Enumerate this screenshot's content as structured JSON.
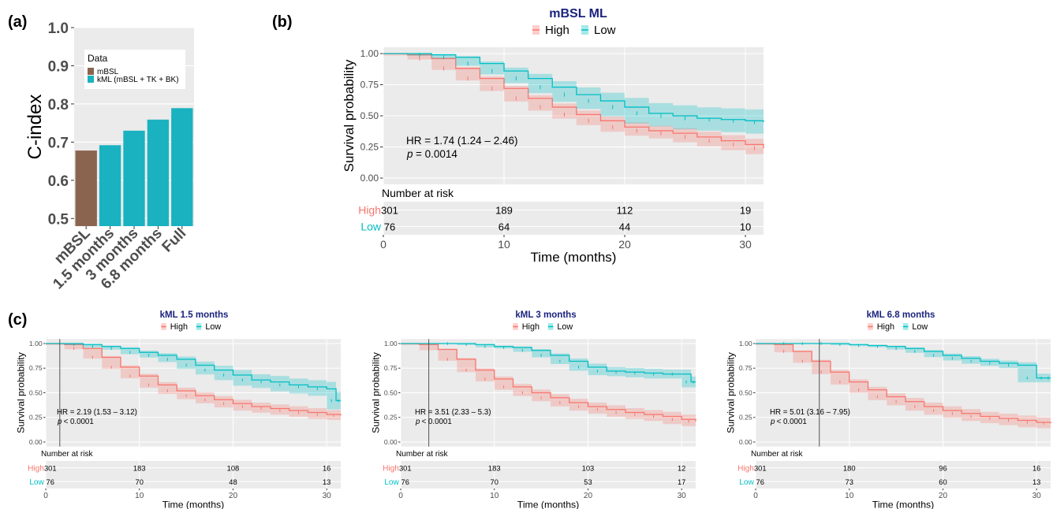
{
  "colors": {
    "high": "#F8766D",
    "low": "#00BFC4",
    "mbsl": "#8B6450",
    "kml": "#1AB2C0",
    "title": "#1A237E",
    "panel": "#EBEBEB"
  },
  "panels": {
    "a": "(a)",
    "b": "(b)",
    "c": "(c)"
  },
  "legend_common": {
    "high": "High",
    "low": "Low"
  },
  "risk_common": {
    "title": "Number at risk",
    "xlabel": "Time (months)",
    "ylabel": "Survival probability"
  },
  "chart_data": [
    {
      "id": "a",
      "type": "bar",
      "categories": [
        "mBSL",
        "1.5 months",
        "3 months",
        "6.8 months",
        "Full"
      ],
      "values": [
        0.678,
        0.692,
        0.73,
        0.759,
        0.789
      ],
      "series_group": [
        "mBSL",
        "kML",
        "kML",
        "kML",
        "kML"
      ],
      "ylabel": "C-index",
      "ylim": [
        0.48,
        1.0
      ],
      "yticks": [
        0.5,
        0.6,
        0.7,
        0.8,
        0.9,
        1.0
      ],
      "legend": {
        "title": "Data",
        "items": [
          "mBSL",
          "kML (mBSL + TK + BK)"
        ],
        "position": "top-left inside"
      }
    },
    {
      "id": "b",
      "type": "line",
      "title": "mBSL ML",
      "hr": "HR = 1.74 (1.24 – 2.46)",
      "p_label": "p",
      "p_value": "= 0.0014",
      "xlim": [
        0,
        31.5
      ],
      "ylim": [
        0,
        1
      ],
      "xticks": [
        0,
        10,
        20,
        30
      ],
      "yticks": [
        "0.00",
        "0.25",
        "0.50",
        "0.75",
        "1.00"
      ],
      "cutoff": null,
      "series": [
        {
          "name": "High",
          "x": [
            0,
            2,
            4,
            6,
            8,
            10,
            12,
            14,
            16,
            18,
            20,
            22,
            24,
            26,
            28,
            30,
            31.5
          ],
          "y": [
            1,
            0.99,
            0.96,
            0.88,
            0.8,
            0.72,
            0.64,
            0.57,
            0.51,
            0.46,
            0.41,
            0.38,
            0.36,
            0.33,
            0.3,
            0.27,
            0.24
          ],
          "band": 0.035
        },
        {
          "name": "Low",
          "x": [
            0,
            2,
            4,
            6,
            8,
            10,
            12,
            14,
            16,
            18,
            20,
            22,
            24,
            26,
            28,
            30,
            31.5
          ],
          "y": [
            1,
            1,
            0.99,
            0.97,
            0.92,
            0.86,
            0.8,
            0.73,
            0.67,
            0.62,
            0.57,
            0.52,
            0.5,
            0.48,
            0.47,
            0.46,
            0.45
          ],
          "band": 0.1
        }
      ],
      "risk": {
        "High": [
          "301",
          "189",
          "112",
          "19"
        ],
        "Low": [
          "76",
          "64",
          "44",
          "10"
        ]
      }
    },
    {
      "id": "c1",
      "type": "line",
      "title": "kML 1.5 months",
      "hr": "HR = 2.19 (1.53 – 3.12)",
      "p_label": "p",
      "p_value": "< 0.0001",
      "xlim": [
        0,
        31.5
      ],
      "ylim": [
        0,
        1
      ],
      "xticks": [
        0,
        10,
        20,
        30
      ],
      "yticks": [
        "0.00",
        "0.25",
        "0.50",
        "0.75",
        "1.00"
      ],
      "cutoff": 1.5,
      "series": [
        {
          "name": "High",
          "x": [
            0,
            2,
            4,
            6,
            8,
            10,
            12,
            14,
            16,
            18,
            20,
            22,
            24,
            26,
            28,
            30,
            31.5
          ],
          "y": [
            1,
            0.99,
            0.95,
            0.86,
            0.76,
            0.67,
            0.58,
            0.52,
            0.47,
            0.43,
            0.39,
            0.36,
            0.34,
            0.32,
            0.3,
            0.28,
            0.27
          ],
          "band": 0.035
        },
        {
          "name": "Low",
          "x": [
            0,
            2,
            4,
            6,
            8,
            10,
            12,
            14,
            16,
            18,
            20,
            22,
            24,
            26,
            28,
            30,
            31,
            31.5
          ],
          "y": [
            1,
            1,
            0.99,
            0.97,
            0.95,
            0.91,
            0.88,
            0.84,
            0.78,
            0.73,
            0.68,
            0.63,
            0.61,
            0.58,
            0.56,
            0.54,
            0.42,
            0.42
          ],
          "band": 0.09
        }
      ],
      "risk": {
        "High": [
          "301",
          "183",
          "108",
          "16"
        ],
        "Low": [
          "76",
          "70",
          "48",
          "13"
        ]
      }
    },
    {
      "id": "c2",
      "type": "line",
      "title": "kML 3 months",
      "hr": "HR = 3.51 (2.33 – 5.3)",
      "p_label": "p",
      "p_value": "< 0.0001",
      "xlim": [
        0,
        31.5
      ],
      "ylim": [
        0,
        1
      ],
      "xticks": [
        0,
        10,
        20,
        30
      ],
      "yticks": [
        "0.00",
        "0.25",
        "0.50",
        "0.75",
        "1.00"
      ],
      "cutoff": 3,
      "series": [
        {
          "name": "High",
          "x": [
            0,
            2,
            4,
            6,
            8,
            10,
            12,
            14,
            16,
            18,
            20,
            22,
            24,
            26,
            28,
            30,
            31.5
          ],
          "y": [
            1,
            0.99,
            0.94,
            0.84,
            0.73,
            0.64,
            0.56,
            0.5,
            0.45,
            0.4,
            0.36,
            0.33,
            0.3,
            0.28,
            0.26,
            0.23,
            0.21
          ],
          "band": 0.035
        },
        {
          "name": "Low",
          "x": [
            0,
            2,
            4,
            6,
            8,
            10,
            12,
            14,
            16,
            18,
            20,
            22,
            24,
            26,
            28,
            30,
            31,
            31.5
          ],
          "y": [
            1,
            1,
            1,
            1,
            0.99,
            0.97,
            0.96,
            0.93,
            0.88,
            0.82,
            0.76,
            0.72,
            0.71,
            0.7,
            0.69,
            0.69,
            0.61,
            0.61
          ],
          "band": 0.08
        }
      ],
      "risk": {
        "High": [
          "301",
          "183",
          "103",
          "12"
        ],
        "Low": [
          "76",
          "70",
          "53",
          "17"
        ]
      }
    },
    {
      "id": "c3",
      "type": "line",
      "title": "kML 6.8 months",
      "hr": "HR = 5.01 (3.16 – 7.95)",
      "p_label": "p",
      "p_value": "< 0.0001",
      "xlim": [
        0,
        31.5
      ],
      "ylim": [
        0,
        1
      ],
      "xticks": [
        0,
        10,
        20,
        30
      ],
      "yticks": [
        "0.00",
        "0.25",
        "0.50",
        "0.75",
        "1.00"
      ],
      "cutoff": 6.8,
      "series": [
        {
          "name": "High",
          "x": [
            0,
            2,
            4,
            6,
            8,
            10,
            12,
            14,
            16,
            18,
            20,
            22,
            24,
            26,
            28,
            30,
            31.5
          ],
          "y": [
            1,
            0.99,
            0.92,
            0.82,
            0.71,
            0.61,
            0.53,
            0.46,
            0.41,
            0.36,
            0.32,
            0.29,
            0.26,
            0.24,
            0.22,
            0.2,
            0.19
          ],
          "band": 0.035
        },
        {
          "name": "Low",
          "x": [
            0,
            2,
            4,
            6,
            8,
            10,
            12,
            14,
            16,
            18,
            20,
            22,
            24,
            26,
            28,
            30,
            31,
            31.5
          ],
          "y": [
            1,
            1,
            1,
            1,
            1,
            0.99,
            0.98,
            0.97,
            0.95,
            0.92,
            0.88,
            0.85,
            0.82,
            0.8,
            0.78,
            0.65,
            0.65,
            0.65
          ],
          "band": 0.07
        }
      ],
      "risk": {
        "High": [
          "301",
          "180",
          "96",
          "16"
        ],
        "Low": [
          "76",
          "73",
          "60",
          "13"
        ]
      }
    }
  ]
}
